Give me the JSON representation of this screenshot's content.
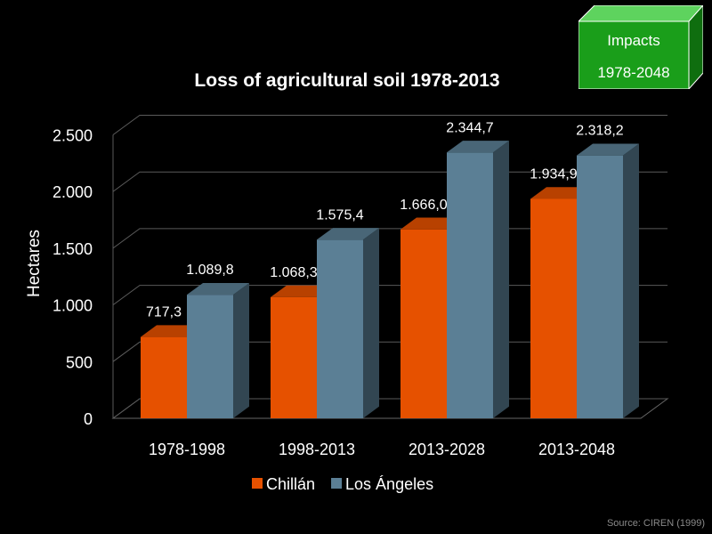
{
  "chart_data": {
    "type": "bar",
    "title": "Loss of agricultural soil 1978-2013",
    "xlabel": "",
    "ylabel": "Hectares",
    "ylim": [
      0,
      2500
    ],
    "yticks": [
      0,
      500,
      1000,
      1500,
      2000,
      2500
    ],
    "ytick_labels": [
      "0",
      "500",
      "1.000",
      "1.500",
      "2.000",
      "2.500"
    ],
    "categories": [
      "1978-1998",
      "1998-2013",
      "2013-2028",
      "2013-2048"
    ],
    "series": [
      {
        "name": "Chillán",
        "color": "#e65100",
        "values": [
          717.3,
          1068.3,
          1666.0,
          1934.9
        ],
        "labels": [
          "717,3",
          "1.068,3",
          "1.666,0",
          "1.934,9"
        ]
      },
      {
        "name": "Los Ángeles",
        "color": "#5b7f95",
        "values": [
          1089.8,
          1575.4,
          2344.7,
          2318.2
        ],
        "labels": [
          "1.089,8",
          "1.575,4",
          "2.344,7",
          "2.318,2"
        ]
      }
    ],
    "legend_position": "bottom",
    "grid": true
  },
  "impacts": {
    "line1": "Impacts",
    "line2": "1978-2048",
    "color": "#1a9e1a"
  },
  "source": "Source: CIREN (1999)"
}
